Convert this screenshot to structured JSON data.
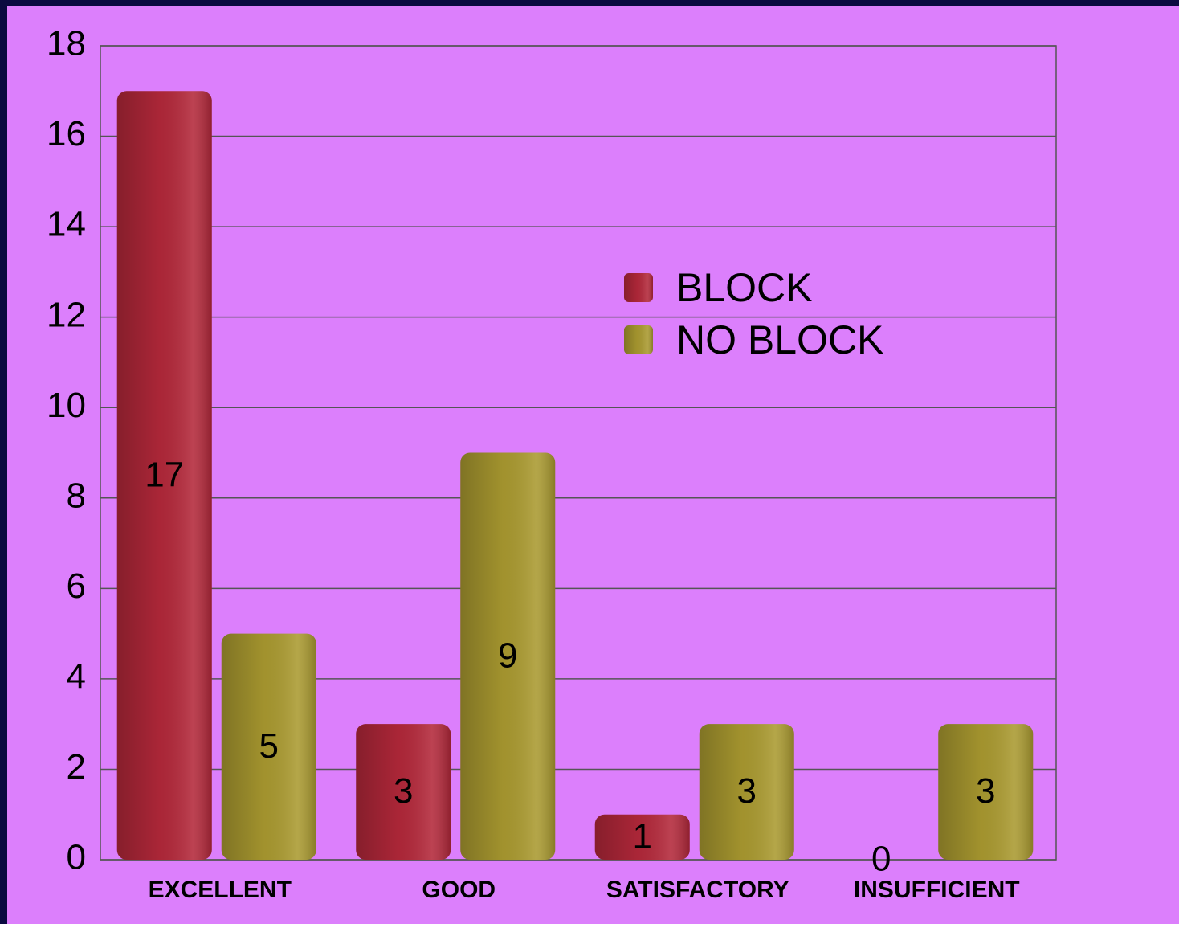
{
  "chart_data": {
    "type": "bar",
    "categories": [
      "EXCELLENT",
      "GOOD",
      "SATISFACTORY",
      "INSUFFICIENT"
    ],
    "series": [
      {
        "name": "BLOCK",
        "color": "#b3283a",
        "values": [
          17,
          3,
          1,
          0
        ]
      },
      {
        "name": "NO BLOCK",
        "color": "#aa9a30",
        "values": [
          5,
          9,
          3,
          3
        ]
      }
    ],
    "ylim": [
      0,
      18
    ],
    "yticks": [
      0,
      2,
      4,
      6,
      8,
      10,
      12,
      14,
      16,
      18
    ],
    "grid": true,
    "data_labels": true
  }
}
